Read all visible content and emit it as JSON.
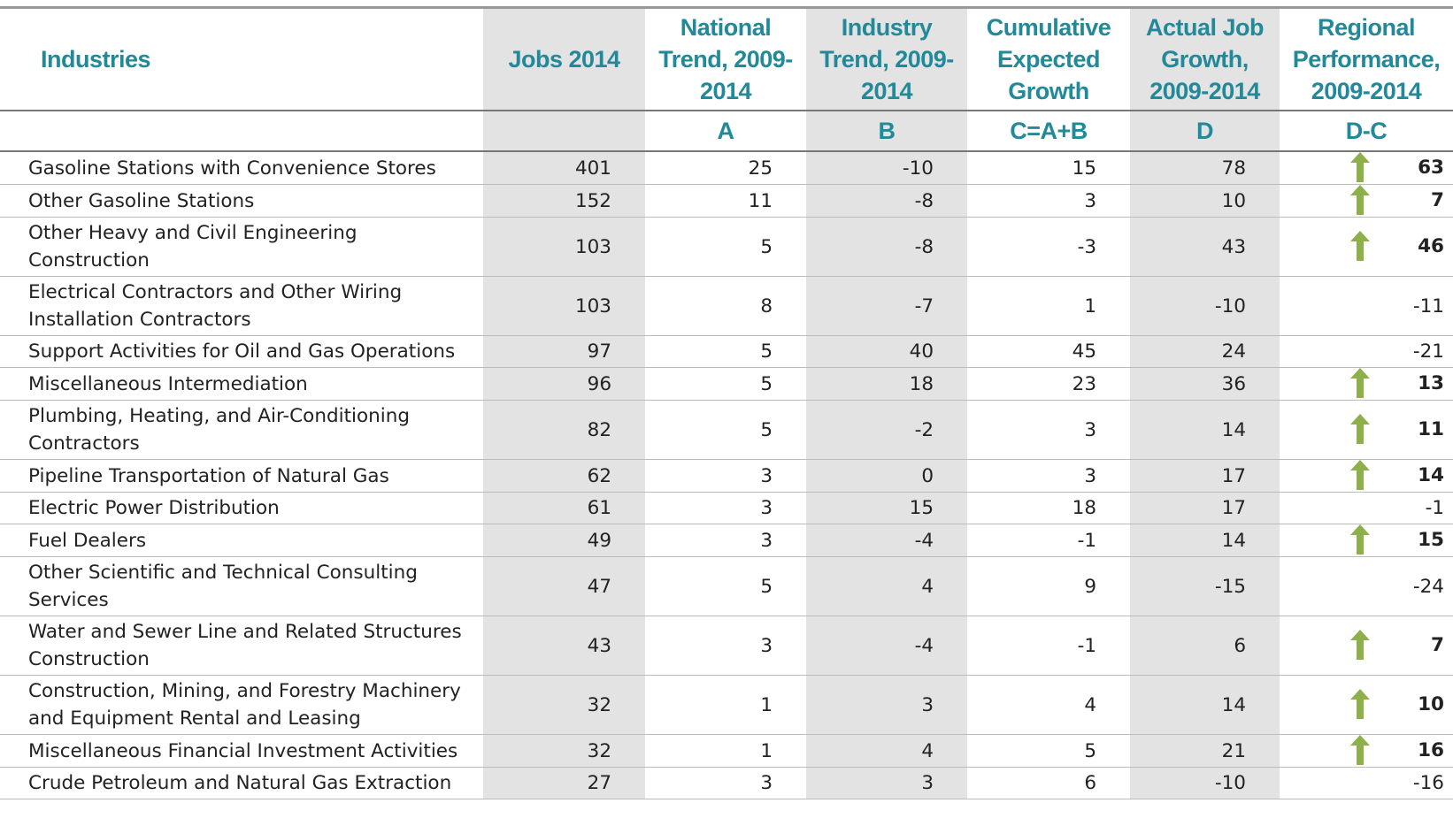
{
  "table": {
    "header": [
      "Industries",
      "Jobs 2014",
      "National Trend, 2009-2014",
      "Industry Trend, 2009-2014",
      "Cumulative Expected Growth",
      "Actual Job Growth, 2009-2014",
      "Regional Performance, 2009-2014"
    ],
    "subheader": [
      "A",
      "B",
      "C=A+B",
      "D",
      "D-C"
    ],
    "rows": [
      [
        "Gasoline Stations with Convenience Stores",
        401,
        25,
        -10,
        15,
        78,
        63
      ],
      [
        "Other Gasoline Stations",
        152,
        11,
        -8,
        3,
        10,
        7
      ],
      [
        "Other Heavy and Civil Engineering Construction",
        103,
        5,
        -8,
        -3,
        43,
        46
      ],
      [
        "Electrical Contractors and Other Wiring Installation Contractors",
        103,
        8,
        -7,
        1,
        -10,
        -11
      ],
      [
        "Support Activities for Oil and Gas Operations",
        97,
        5,
        40,
        45,
        24,
        -21
      ],
      [
        "Miscellaneous Intermediation",
        96,
        5,
        18,
        23,
        36,
        13
      ],
      [
        "Plumbing, Heating, and Air-Conditioning Contractors",
        82,
        5,
        -2,
        3,
        14,
        11
      ],
      [
        "Pipeline Transportation of Natural Gas",
        62,
        3,
        0,
        3,
        17,
        14
      ],
      [
        "Electric Power Distribution",
        61,
        3,
        15,
        18,
        17,
        -1
      ],
      [
        "Fuel Dealers",
        49,
        3,
        -4,
        -1,
        14,
        15
      ],
      [
        "Other Scientific and Technical Consulting Services",
        47,
        5,
        4,
        9,
        -15,
        -24
      ],
      [
        "Water and Sewer Line and Related Structures Construction",
        43,
        3,
        -4,
        -1,
        6,
        7
      ],
      [
        "Construction, Mining, and Forestry Machinery and Equipment Rental and Leasing",
        32,
        1,
        3,
        4,
        14,
        10
      ],
      [
        "Miscellaneous Financial Investment Activities",
        32,
        1,
        4,
        5,
        21,
        16
      ],
      [
        "Crude Petroleum and Natural Gas Extraction",
        27,
        3,
        3,
        6,
        -10,
        -16
      ]
    ],
    "shaded_columns": [
      1,
      3,
      5
    ],
    "header_color": "#22899a",
    "arrow_color": "#8db04a"
  }
}
